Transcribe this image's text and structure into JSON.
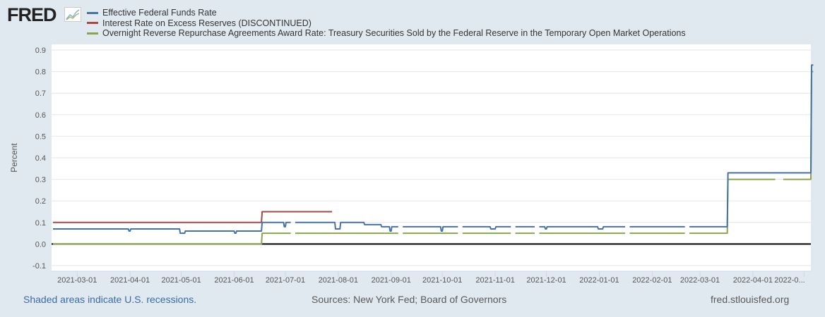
{
  "logo": "FRED",
  "chart_data": {
    "type": "line",
    "ylabel": "Percent",
    "ylim": [
      -0.1,
      0.9
    ],
    "yticks": [
      "0.9",
      "0.8",
      "0.7",
      "0.6",
      "0.5",
      "0.4",
      "0.3",
      "0.2",
      "0.1",
      "0.0",
      "-0.1"
    ],
    "xrange": [
      "2021-02-14",
      "2022-05-05"
    ],
    "xticks": [
      "2021-03-01",
      "2021-04-01",
      "2021-05-01",
      "2021-06-01",
      "2021-07-01",
      "2021-08-01",
      "2021-09-01",
      "2021-10-01",
      "2021-11-01",
      "2021-12-01",
      "2022-01-01",
      "2022-02-01",
      "2022-03-01",
      "2022-04-01",
      "2022-0..."
    ],
    "xtick_dates": [
      "2021-03-01",
      "2021-04-01",
      "2021-05-01",
      "2021-06-01",
      "2021-07-01",
      "2021-08-01",
      "2021-09-01",
      "2021-10-01",
      "2021-11-01",
      "2021-12-01",
      "2022-01-01",
      "2022-02-01",
      "2022-03-01",
      "2022-04-01",
      "2022-05-01"
    ],
    "series": [
      {
        "name": "Effective Federal Funds Rate",
        "color": "#4572a7",
        "points": [
          [
            "2021-02-14",
            0.07
          ],
          [
            "2021-03-31",
            0.06
          ],
          [
            "2021-04-01",
            0.07
          ],
          [
            "2021-04-30",
            0.05
          ],
          [
            "2021-05-03",
            0.06
          ],
          [
            "2021-06-01",
            0.05
          ],
          [
            "2021-06-02",
            0.06
          ],
          [
            "2021-06-17",
            0.1
          ],
          [
            "2021-06-30",
            0.08
          ],
          [
            "2021-07-01",
            0.1
          ],
          [
            "2021-07-05",
            null
          ],
          [
            "2021-07-06",
            0.1
          ],
          [
            "2021-07-30",
            0.07
          ],
          [
            "2021-08-02",
            0.1
          ],
          [
            "2021-08-16",
            0.09
          ],
          [
            "2021-08-26",
            0.08
          ],
          [
            "2021-08-31",
            0.06
          ],
          [
            "2021-09-01",
            0.08
          ],
          [
            "2021-09-06",
            null
          ],
          [
            "2021-09-07",
            0.08
          ],
          [
            "2021-09-30",
            0.06
          ],
          [
            "2021-10-01",
            0.08
          ],
          [
            "2021-10-11",
            null
          ],
          [
            "2021-10-12",
            0.08
          ],
          [
            "2021-10-29",
            0.07
          ],
          [
            "2021-11-01",
            0.08
          ],
          [
            "2021-11-11",
            null
          ],
          [
            "2021-11-12",
            0.08
          ],
          [
            "2021-11-25",
            null
          ],
          [
            "2021-11-26",
            0.08
          ],
          [
            "2021-11-30",
            0.07
          ],
          [
            "2021-12-01",
            0.08
          ],
          [
            "2021-12-31",
            0.07
          ],
          [
            "2022-01-03",
            0.08
          ],
          [
            "2022-01-17",
            null
          ],
          [
            "2022-01-18",
            0.08
          ],
          [
            "2022-02-21",
            null
          ],
          [
            "2022-02-22",
            0.08
          ],
          [
            "2022-03-17",
            0.33
          ],
          [
            "2022-05-05",
            0.83
          ],
          [
            "2022-05-06",
            0.83
          ]
        ]
      },
      {
        "name": "Interest Rate on Excess Reserves (DISCONTINUED)",
        "color": "#aa4643",
        "points": [
          [
            "2021-02-14",
            0.1
          ],
          [
            "2021-06-17",
            0.15
          ],
          [
            "2021-07-28",
            0.15
          ]
        ]
      },
      {
        "name": "Overnight Reverse Repurchase Agreements Award Rate: Treasury Securities Sold by the Federal Reserve in the Temporary Open Market Operations",
        "color": "#89a54e",
        "points": [
          [
            "2021-02-14",
            0.0
          ],
          [
            "2021-06-17",
            0.05
          ],
          [
            "2021-07-05",
            null
          ],
          [
            "2021-07-06",
            0.05
          ],
          [
            "2021-09-06",
            null
          ],
          [
            "2021-09-07",
            0.05
          ],
          [
            "2021-10-11",
            null
          ],
          [
            "2021-10-12",
            0.05
          ],
          [
            "2021-11-11",
            null
          ],
          [
            "2021-11-12",
            0.05
          ],
          [
            "2021-11-25",
            null
          ],
          [
            "2021-11-26",
            0.05
          ],
          [
            "2022-01-17",
            null
          ],
          [
            "2022-01-18",
            0.05
          ],
          [
            "2022-02-21",
            null
          ],
          [
            "2022-02-22",
            0.05
          ],
          [
            "2022-03-17",
            0.3
          ],
          [
            "2022-04-15",
            null
          ],
          [
            "2022-04-18",
            0.3
          ],
          [
            "2022-05-05",
            0.8
          ],
          [
            "2022-05-06",
            0.8
          ]
        ]
      }
    ]
  },
  "footer": {
    "recessions": "Shaded areas indicate U.S. recessions.",
    "sources": "Sources: New York Fed; Board of Governors",
    "site": "fred.stlouisfed.org"
  }
}
